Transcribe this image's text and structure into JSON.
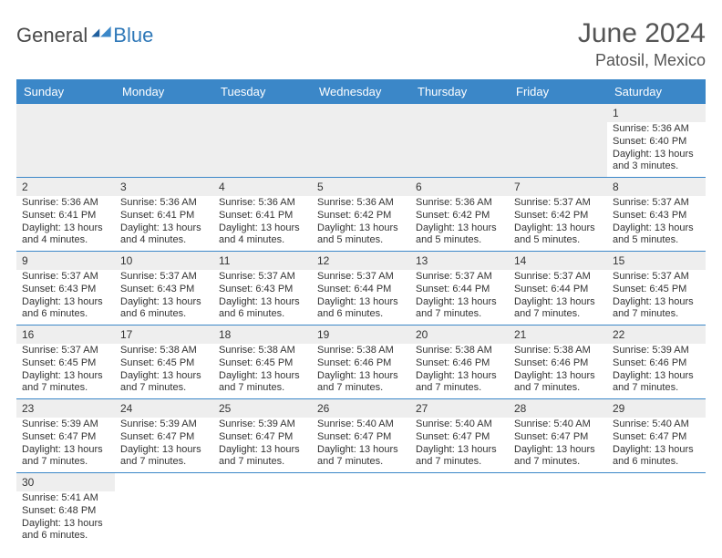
{
  "logo": {
    "general": "General",
    "blue": "Blue"
  },
  "brand_color": "#2f78b8",
  "header_bg": "#3b87c8",
  "daynum_bg": "#eeeeee",
  "title": "June 2024",
  "location": "Patosil, Mexico",
  "weekdays": [
    "Sunday",
    "Monday",
    "Tuesday",
    "Wednesday",
    "Thursday",
    "Friday",
    "Saturday"
  ],
  "weeks": [
    [
      null,
      null,
      null,
      null,
      null,
      null,
      {
        "n": "1",
        "sunrise": "Sunrise: 5:36 AM",
        "sunset": "Sunset: 6:40 PM",
        "daylight": "Daylight: 13 hours and 3 minutes."
      }
    ],
    [
      {
        "n": "2",
        "sunrise": "Sunrise: 5:36 AM",
        "sunset": "Sunset: 6:41 PM",
        "daylight": "Daylight: 13 hours and 4 minutes."
      },
      {
        "n": "3",
        "sunrise": "Sunrise: 5:36 AM",
        "sunset": "Sunset: 6:41 PM",
        "daylight": "Daylight: 13 hours and 4 minutes."
      },
      {
        "n": "4",
        "sunrise": "Sunrise: 5:36 AM",
        "sunset": "Sunset: 6:41 PM",
        "daylight": "Daylight: 13 hours and 4 minutes."
      },
      {
        "n": "5",
        "sunrise": "Sunrise: 5:36 AM",
        "sunset": "Sunset: 6:42 PM",
        "daylight": "Daylight: 13 hours and 5 minutes."
      },
      {
        "n": "6",
        "sunrise": "Sunrise: 5:36 AM",
        "sunset": "Sunset: 6:42 PM",
        "daylight": "Daylight: 13 hours and 5 minutes."
      },
      {
        "n": "7",
        "sunrise": "Sunrise: 5:37 AM",
        "sunset": "Sunset: 6:42 PM",
        "daylight": "Daylight: 13 hours and 5 minutes."
      },
      {
        "n": "8",
        "sunrise": "Sunrise: 5:37 AM",
        "sunset": "Sunset: 6:43 PM",
        "daylight": "Daylight: 13 hours and 5 minutes."
      }
    ],
    [
      {
        "n": "9",
        "sunrise": "Sunrise: 5:37 AM",
        "sunset": "Sunset: 6:43 PM",
        "daylight": "Daylight: 13 hours and 6 minutes."
      },
      {
        "n": "10",
        "sunrise": "Sunrise: 5:37 AM",
        "sunset": "Sunset: 6:43 PM",
        "daylight": "Daylight: 13 hours and 6 minutes."
      },
      {
        "n": "11",
        "sunrise": "Sunrise: 5:37 AM",
        "sunset": "Sunset: 6:43 PM",
        "daylight": "Daylight: 13 hours and 6 minutes."
      },
      {
        "n": "12",
        "sunrise": "Sunrise: 5:37 AM",
        "sunset": "Sunset: 6:44 PM",
        "daylight": "Daylight: 13 hours and 6 minutes."
      },
      {
        "n": "13",
        "sunrise": "Sunrise: 5:37 AM",
        "sunset": "Sunset: 6:44 PM",
        "daylight": "Daylight: 13 hours and 7 minutes."
      },
      {
        "n": "14",
        "sunrise": "Sunrise: 5:37 AM",
        "sunset": "Sunset: 6:44 PM",
        "daylight": "Daylight: 13 hours and 7 minutes."
      },
      {
        "n": "15",
        "sunrise": "Sunrise: 5:37 AM",
        "sunset": "Sunset: 6:45 PM",
        "daylight": "Daylight: 13 hours and 7 minutes."
      }
    ],
    [
      {
        "n": "16",
        "sunrise": "Sunrise: 5:37 AM",
        "sunset": "Sunset: 6:45 PM",
        "daylight": "Daylight: 13 hours and 7 minutes."
      },
      {
        "n": "17",
        "sunrise": "Sunrise: 5:38 AM",
        "sunset": "Sunset: 6:45 PM",
        "daylight": "Daylight: 13 hours and 7 minutes."
      },
      {
        "n": "18",
        "sunrise": "Sunrise: 5:38 AM",
        "sunset": "Sunset: 6:45 PM",
        "daylight": "Daylight: 13 hours and 7 minutes."
      },
      {
        "n": "19",
        "sunrise": "Sunrise: 5:38 AM",
        "sunset": "Sunset: 6:46 PM",
        "daylight": "Daylight: 13 hours and 7 minutes."
      },
      {
        "n": "20",
        "sunrise": "Sunrise: 5:38 AM",
        "sunset": "Sunset: 6:46 PM",
        "daylight": "Daylight: 13 hours and 7 minutes."
      },
      {
        "n": "21",
        "sunrise": "Sunrise: 5:38 AM",
        "sunset": "Sunset: 6:46 PM",
        "daylight": "Daylight: 13 hours and 7 minutes."
      },
      {
        "n": "22",
        "sunrise": "Sunrise: 5:39 AM",
        "sunset": "Sunset: 6:46 PM",
        "daylight": "Daylight: 13 hours and 7 minutes."
      }
    ],
    [
      {
        "n": "23",
        "sunrise": "Sunrise: 5:39 AM",
        "sunset": "Sunset: 6:47 PM",
        "daylight": "Daylight: 13 hours and 7 minutes."
      },
      {
        "n": "24",
        "sunrise": "Sunrise: 5:39 AM",
        "sunset": "Sunset: 6:47 PM",
        "daylight": "Daylight: 13 hours and 7 minutes."
      },
      {
        "n": "25",
        "sunrise": "Sunrise: 5:39 AM",
        "sunset": "Sunset: 6:47 PM",
        "daylight": "Daylight: 13 hours and 7 minutes."
      },
      {
        "n": "26",
        "sunrise": "Sunrise: 5:40 AM",
        "sunset": "Sunset: 6:47 PM",
        "daylight": "Daylight: 13 hours and 7 minutes."
      },
      {
        "n": "27",
        "sunrise": "Sunrise: 5:40 AM",
        "sunset": "Sunset: 6:47 PM",
        "daylight": "Daylight: 13 hours and 7 minutes."
      },
      {
        "n": "28",
        "sunrise": "Sunrise: 5:40 AM",
        "sunset": "Sunset: 6:47 PM",
        "daylight": "Daylight: 13 hours and 7 minutes."
      },
      {
        "n": "29",
        "sunrise": "Sunrise: 5:40 AM",
        "sunset": "Sunset: 6:47 PM",
        "daylight": "Daylight: 13 hours and 6 minutes."
      }
    ],
    [
      {
        "n": "30",
        "sunrise": "Sunrise: 5:41 AM",
        "sunset": "Sunset: 6:48 PM",
        "daylight": "Daylight: 13 hours and 6 minutes."
      },
      null,
      null,
      null,
      null,
      null,
      null
    ]
  ]
}
